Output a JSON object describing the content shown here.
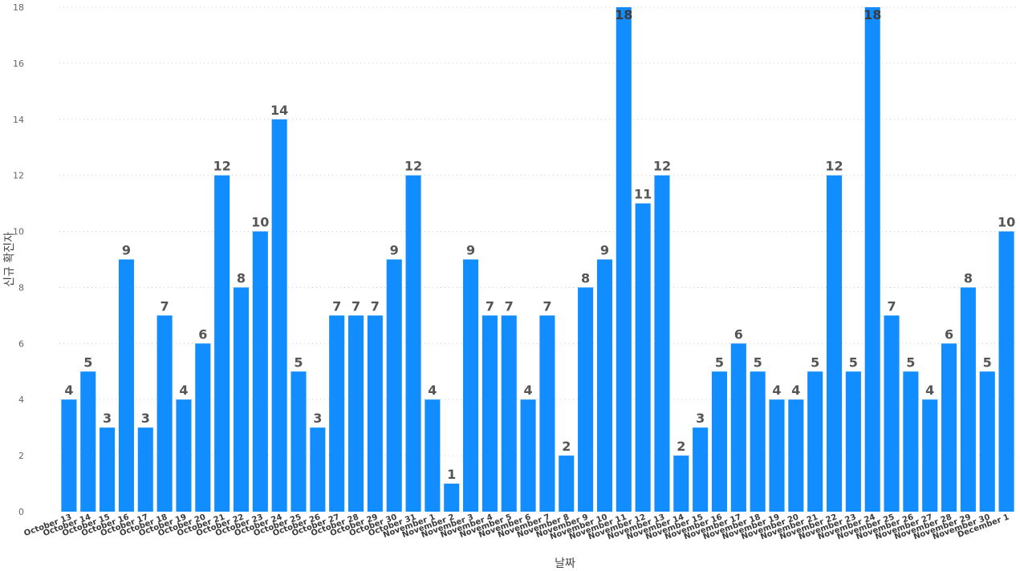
{
  "chart_data": {
    "type": "bar",
    "xlabel": "날짜",
    "ylabel": "신규 확진자",
    "ylim": [
      0,
      18
    ],
    "yticks": [
      0,
      2,
      4,
      6,
      8,
      10,
      12,
      14,
      16,
      18
    ],
    "grid": true,
    "bar_color": "#118DFF",
    "categories": [
      "October 13",
      "October 14",
      "October 15",
      "October 16",
      "October 17",
      "October 18",
      "October 19",
      "October 20",
      "October 21",
      "October 22",
      "October 23",
      "October 24",
      "October 25",
      "October 26",
      "October 27",
      "October 28",
      "October 29",
      "October 30",
      "October 31",
      "November 1",
      "November 2",
      "November 3",
      "November 4",
      "November 5",
      "November 6",
      "November 7",
      "November 8",
      "November 9",
      "November 10",
      "November 11",
      "November 12",
      "November 13",
      "November 14",
      "November 15",
      "November 16",
      "November 17",
      "November 18",
      "November 19",
      "November 20",
      "November 21",
      "November 22",
      "November 23",
      "November 24",
      "November 25",
      "November 26",
      "November 27",
      "November 28",
      "November 29",
      "November 30",
      "December 1"
    ],
    "values": [
      4,
      5,
      3,
      9,
      3,
      7,
      4,
      6,
      12,
      8,
      10,
      14,
      5,
      3,
      7,
      7,
      7,
      9,
      12,
      4,
      1,
      9,
      7,
      7,
      4,
      7,
      2,
      8,
      9,
      18,
      11,
      12,
      2,
      3,
      5,
      6,
      5,
      4,
      4,
      5,
      12,
      5,
      18,
      7,
      5,
      4,
      6,
      8,
      5,
      10
    ]
  }
}
